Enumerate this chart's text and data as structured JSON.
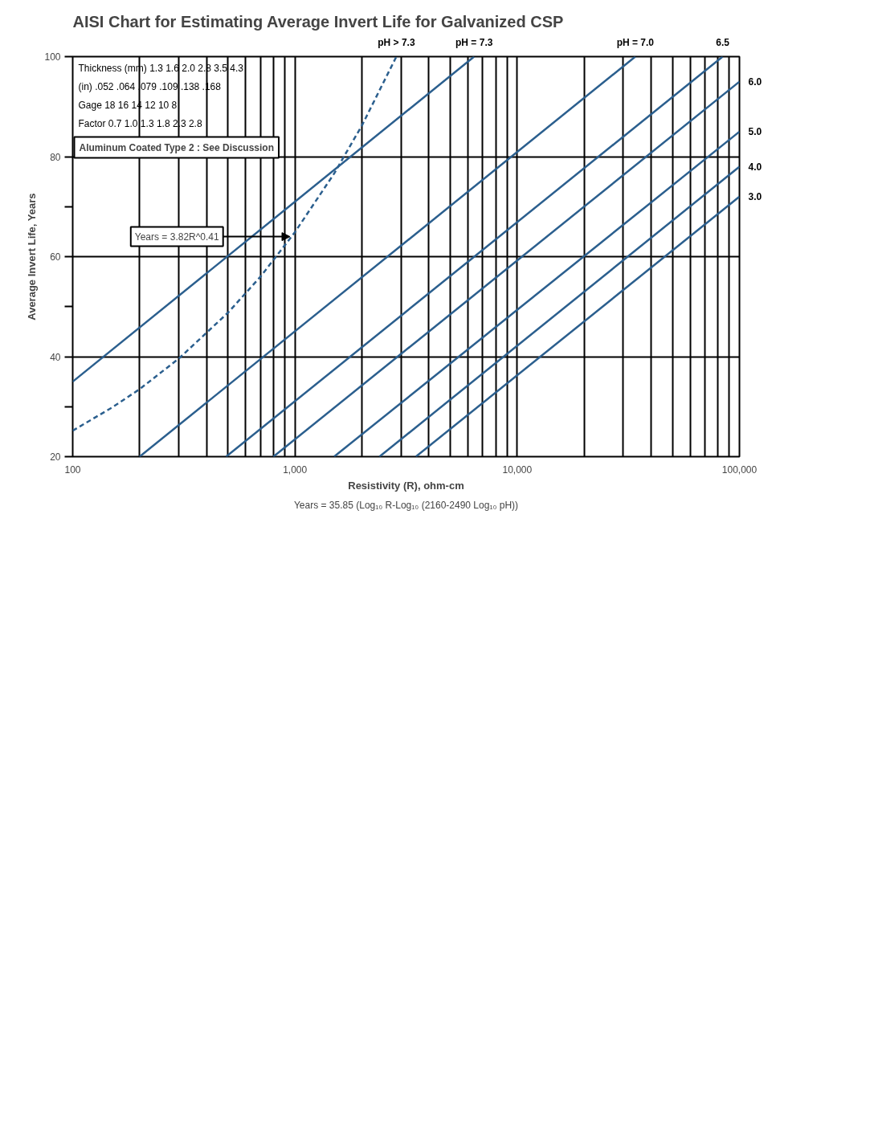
{
  "chart_data": {
    "type": "line",
    "title": "AISI Chart for Estimating Average Invert Life for Galvanized CSP",
    "xlabel": "Resistivity (R), ohm-cm",
    "ylabel": "Average Invert Life, Years",
    "log": "x",
    "xlim": [
      100,
      100000
    ],
    "ylim": [
      20,
      100
    ],
    "xticks": [
      {
        "value": 100,
        "label": "100"
      },
      {
        "value": 1000,
        "label": "1,000"
      },
      {
        "value": 10000,
        "label": "10,000"
      },
      {
        "value": 100000,
        "label": "100,000"
      }
    ],
    "yticks": [
      20,
      {
        "value": 30,
        "label": null
      },
      40,
      {
        "value": 50,
        "label": null
      },
      60,
      {
        "value": 70,
        "label": null
      },
      80,
      100
    ],
    "grid": true,
    "series": [
      {
        "name": "pH > 7.3",
        "color": "#2b5f8e",
        "line_style": "dashed",
        "x": [
          100,
          150,
          200,
          300,
          500,
          700,
          1000,
          1500,
          2000,
          2860
        ],
        "values": [
          25.2,
          29.8,
          33.5,
          39.6,
          48.8,
          56.0,
          64.9,
          76.6,
          86.2,
          100
        ]
      },
      {
        "name": "pH = 7.3",
        "color": "#2b5f8e",
        "x": [
          100,
          6400
        ],
        "values": [
          35,
          100
        ]
      },
      {
        "name": "pH = 7.0",
        "color": "#2b5f8e",
        "x": [
          200,
          34000
        ],
        "values": [
          20,
          100
        ]
      },
      {
        "name": "6.5",
        "color": "#2b5f8e",
        "x": [
          490,
          84000
        ],
        "values": [
          20,
          100
        ]
      },
      {
        "name": "6.0",
        "color": "#2b5f8e",
        "x": [
          800,
          100000
        ],
        "values": [
          20,
          95
        ]
      },
      {
        "name": "5.0",
        "color": "#2b5f8e",
        "x": [
          1500,
          100000
        ],
        "values": [
          20,
          85
        ]
      },
      {
        "name": "4.0",
        "color": "#2b5f8e",
        "x": [
          2400,
          100000
        ],
        "values": [
          20,
          78
        ]
      },
      {
        "name": "3.0",
        "color": "#2b5f8e",
        "x": [
          3500,
          100000
        ],
        "values": [
          20,
          72
        ]
      }
    ],
    "annotations": [
      "Thickness (mm)    1.3    1.6    2.0    2.8    3.5    4.3",
      "(in)    .052  .064  .079  .109  .138  .168",
      "Gage    18    16    14    12    10    8",
      "Factor    0.7    1.0    1.3    1.8    2.3    2.8",
      "Aluminum Coated Type 2 : See Discussion",
      {
        "text": "Years = 3.82R^0.41",
        "x": 950,
        "y": 64
      },
      "Years = 35.85 (Log₁₀ R-Log₁₀ (2160-2490 Log₁₀ pH))"
    ]
  }
}
